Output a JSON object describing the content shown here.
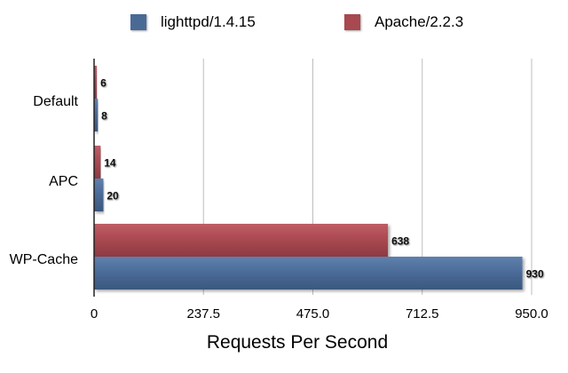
{
  "colors": {
    "lighttpd": "#4a6a96",
    "apache": "#a84850",
    "grid": "#bdbdbd",
    "axis": "#222222"
  },
  "chart_data": {
    "type": "bar",
    "orientation": "horizontal",
    "categories": [
      "Default",
      "APC",
      "WP-Cache"
    ],
    "series": [
      {
        "name": "Apache/2.2.3",
        "values": [
          6,
          14,
          638
        ]
      },
      {
        "name": "lighttpd/1.4.15",
        "values": [
          8,
          20,
          930
        ]
      }
    ],
    "data_labels": {
      "Apache/2.2.3": [
        "6",
        "14",
        "638"
      ],
      "lighttpd/1.4.15": [
        "8",
        "20",
        "930"
      ]
    },
    "xlabel": "Requests Per Second",
    "ylabel": "",
    "title": "",
    "xlim": [
      0,
      950
    ],
    "xticks": [
      "0",
      "237.5",
      "475.0",
      "712.5",
      "950.0"
    ],
    "grid": "vertical",
    "legend_position": "top"
  },
  "legend": {
    "items": [
      {
        "label": "lighttpd/1.4.15",
        "color": "#4a6a96"
      },
      {
        "label": "Apache/2.2.3",
        "color": "#a84850"
      }
    ]
  }
}
